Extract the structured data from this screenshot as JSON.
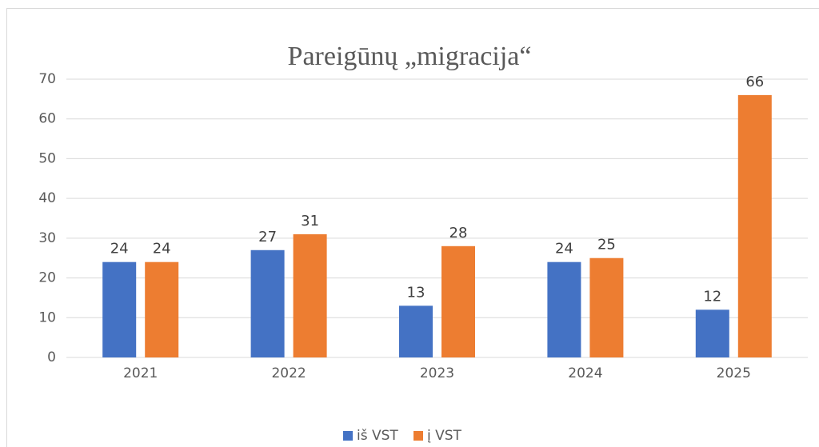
{
  "chart_data": {
    "type": "bar",
    "title": "Pareigūnų „migracija“",
    "categories": [
      "2021",
      "2022",
      "2023",
      "2024",
      "2025"
    ],
    "series": [
      {
        "name": "iš VST",
        "color": "#4472c4",
        "values": [
          24,
          27,
          13,
          24,
          12
        ]
      },
      {
        "name": "į VST",
        "color": "#ed7d31",
        "values": [
          24,
          31,
          28,
          25,
          66
        ]
      }
    ],
    "ylim": [
      0,
      70
    ],
    "yticks": [
      0,
      10,
      20,
      30,
      40,
      50,
      60,
      70
    ],
    "grid": true,
    "legend": "bottom"
  }
}
